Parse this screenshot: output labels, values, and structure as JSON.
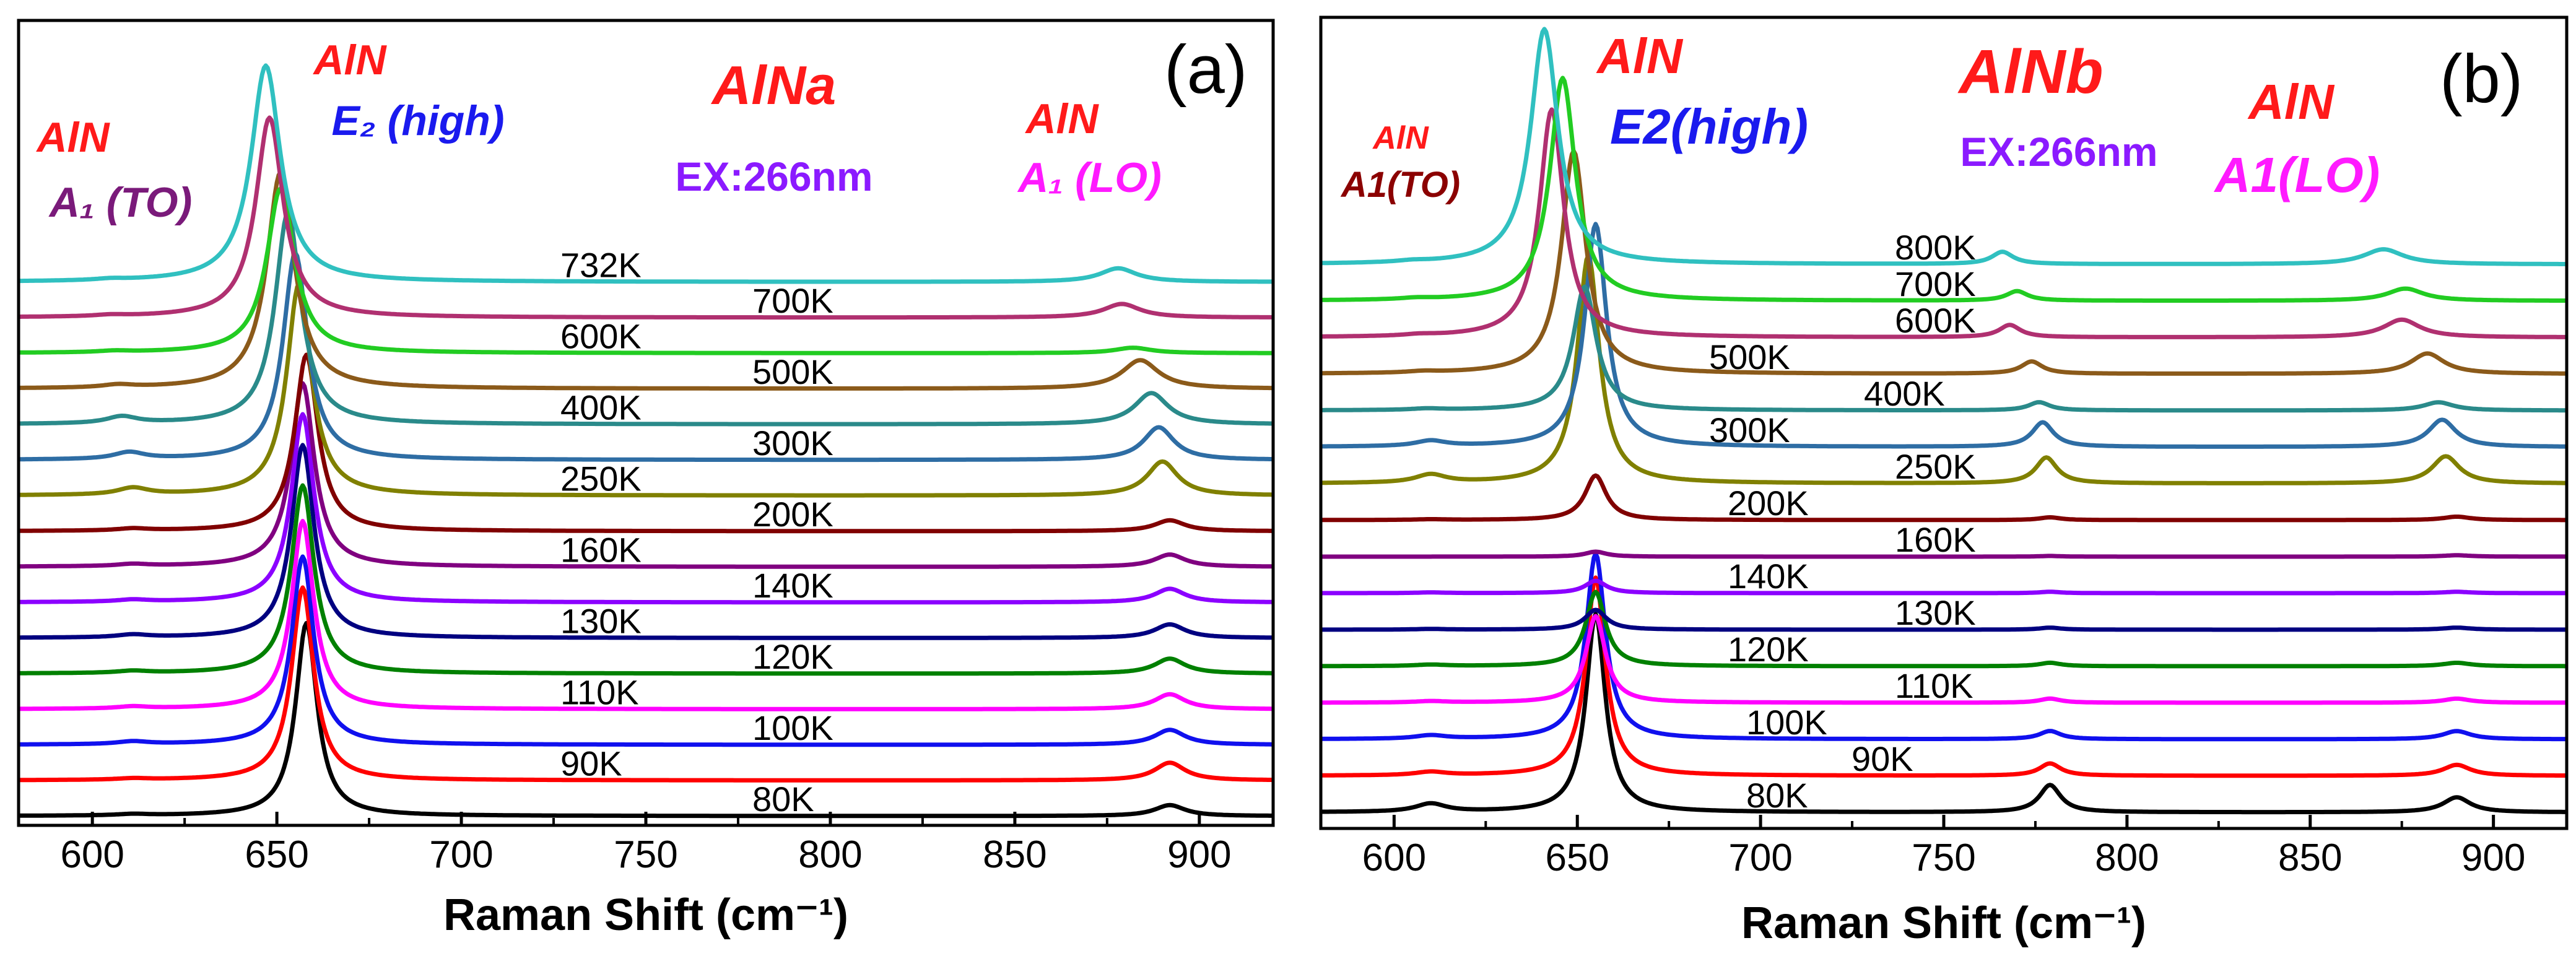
{
  "chart_data": [
    {
      "type": "line",
      "panel_label": "(a)",
      "sample_title": "AlNa",
      "excitation": "EX:266nm",
      "xlabel": "Raman Shift (cm⁻¹)",
      "xlim": [
        580,
        920
      ],
      "xticks": [
        600,
        650,
        700,
        750,
        800,
        850,
        900
      ],
      "grid": false,
      "mode_annotations": [
        {
          "top": "AlN",
          "bottom": "A₁ (TO)",
          "top_color": "#ff1a1a",
          "bottom_color": "#7a1a7a",
          "x": 610
        },
        {
          "top": "AlN",
          "bottom": "E₂ (high)",
          "top_color": "#ff1a1a",
          "bottom_color": "#1a1aee",
          "x": 655
        },
        {
          "top": "AlN",
          "bottom": "A₁ (LO)",
          "top_color": "#ff1a1a",
          "bottom_color": "#ff1aff",
          "x": 890
        }
      ],
      "series": [
        {
          "name": "80K",
          "color": "#000000",
          "e2_pos": 658,
          "e2_amp": 0.82,
          "e2_w": 3.5,
          "to_pos": 611,
          "to_amp": 0.02,
          "lo_pos": 892,
          "lo_amp": 0.16,
          "lo_w": 5
        },
        {
          "name": "90K",
          "color": "#ff0000",
          "e2_pos": 657,
          "e2_amp": 0.82,
          "e2_w": 3.6,
          "to_pos": 611,
          "to_amp": 0.02,
          "lo_pos": 892,
          "lo_amp": 0.26,
          "lo_w": 5
        },
        {
          "name": "100K",
          "color": "#1010ee",
          "e2_pos": 657,
          "e2_amp": 0.8,
          "e2_w": 3.6,
          "to_pos": 611,
          "to_amp": 0.04,
          "lo_pos": 892,
          "lo_amp": 0.22,
          "lo_w": 5
        },
        {
          "name": "110K",
          "color": "#ff00ff",
          "e2_pos": 657,
          "e2_amp": 0.8,
          "e2_w": 3.6,
          "to_pos": 611,
          "to_amp": 0.03,
          "lo_pos": 892,
          "lo_amp": 0.22,
          "lo_w": 5
        },
        {
          "name": "120K",
          "color": "#008000",
          "e2_pos": 657,
          "e2_amp": 0.8,
          "e2_w": 3.7,
          "to_pos": 611,
          "to_amp": 0.03,
          "lo_pos": 892,
          "lo_amp": 0.22,
          "lo_w": 5
        },
        {
          "name": "130K",
          "color": "#000080",
          "e2_pos": 657,
          "e2_amp": 0.82,
          "e2_w": 3.7,
          "to_pos": 611,
          "to_amp": 0.04,
          "lo_pos": 892,
          "lo_amp": 0.2,
          "lo_w": 5
        },
        {
          "name": "140K",
          "color": "#8b00ff",
          "e2_pos": 657,
          "e2_amp": 0.8,
          "e2_w": 3.7,
          "to_pos": 611,
          "to_amp": 0.03,
          "lo_pos": 892,
          "lo_amp": 0.2,
          "lo_w": 5
        },
        {
          "name": "160K",
          "color": "#800080",
          "e2_pos": 657,
          "e2_amp": 0.78,
          "e2_w": 3.8,
          "to_pos": 611,
          "to_amp": 0.03,
          "lo_pos": 892,
          "lo_amp": 0.18,
          "lo_w": 5
        },
        {
          "name": "200K",
          "color": "#800000",
          "e2_pos": 658,
          "e2_amp": 0.75,
          "e2_w": 3.8,
          "to_pos": 611,
          "to_amp": 0.03,
          "lo_pos": 892,
          "lo_amp": 0.16,
          "lo_w": 5
        },
        {
          "name": "250K",
          "color": "#808000",
          "e2_pos": 656,
          "e2_amp": 0.9,
          "e2_w": 4.0,
          "to_pos": 611,
          "to_amp": 0.1,
          "lo_pos": 890,
          "lo_amp": 0.5,
          "lo_w": 5
        },
        {
          "name": "300K",
          "color": "#2e6da4",
          "e2_pos": 655,
          "e2_amp": 0.88,
          "e2_w": 4.0,
          "to_pos": 610,
          "to_amp": 0.1,
          "lo_pos": 889,
          "lo_amp": 0.48,
          "lo_w": 5
        },
        {
          "name": "400K",
          "color": "#2a8a8a",
          "e2_pos": 653,
          "e2_amp": 0.9,
          "e2_w": 4.2,
          "to_pos": 608,
          "to_amp": 0.1,
          "lo_pos": 887,
          "lo_amp": 0.46,
          "lo_w": 5.5
        },
        {
          "name": "500K",
          "color": "#8b5a1a",
          "e2_pos": 651,
          "e2_amp": 0.92,
          "e2_w": 4.5,
          "to_pos": 607,
          "to_amp": 0.04,
          "lo_pos": 884,
          "lo_amp": 0.42,
          "lo_w": 6
        },
        {
          "name": "600K",
          "color": "#22cc22",
          "e2_pos": 651,
          "e2_amp": 0.7,
          "e2_w": 4.5,
          "to_pos": 606,
          "to_amp": 0.02,
          "lo_pos": 882,
          "lo_amp": 0.08,
          "lo_w": 6
        },
        {
          "name": "700K",
          "color": "#b03070",
          "e2_pos": 648,
          "e2_amp": 0.85,
          "e2_w": 4.5,
          "to_pos": 605,
          "to_amp": 0.02,
          "lo_pos": 879,
          "lo_amp": 0.2,
          "lo_w": 6
        },
        {
          "name": "732K",
          "color": "#30c0c0",
          "e2_pos": 647,
          "e2_amp": 0.92,
          "e2_w": 4.8,
          "to_pos": 605,
          "to_amp": 0.02,
          "lo_pos": 878,
          "lo_amp": 0.2,
          "lo_w": 6
        }
      ]
    },
    {
      "type": "line",
      "panel_label": "(b)",
      "sample_title": "AlNb",
      "excitation": "EX:266nm",
      "xlabel": "Raman Shift (cm⁻¹)",
      "xlim": [
        580,
        920
      ],
      "xticks": [
        600,
        650,
        700,
        750,
        800,
        850,
        900
      ],
      "grid": false,
      "mode_annotations": [
        {
          "top": "AlN",
          "bottom": "A1(TO)",
          "top_color": "#ff1a1a",
          "bottom_color": "#8b0000",
          "x": 610
        },
        {
          "top": "AlN",
          "bottom": "E2(high)",
          "top_color": "#ff1a1a",
          "bottom_color": "#1a1aee",
          "x": 655
        },
        {
          "top": "AlN",
          "bottom": "A1(LO)",
          "top_color": "#ff1a1a",
          "bottom_color": "#ff1aff",
          "x": 890
        }
      ],
      "series": [
        {
          "name": "80K",
          "color": "#000000",
          "e2_pos": 655,
          "e2_amp": 0.8,
          "e2_w": 3.2,
          "to_pos": 610,
          "to_amp": 0.12,
          "lo_pos": 890,
          "lo_amp": 0.22,
          "lo_w": 4.5,
          "x2_pos": 779,
          "x2_amp": 0.4
        },
        {
          "name": "90K",
          "color": "#ff0000",
          "e2_pos": 655,
          "e2_amp": 0.8,
          "e2_w": 3.2,
          "to_pos": 610,
          "to_amp": 0.05,
          "lo_pos": 890,
          "lo_amp": 0.16,
          "lo_w": 4.5,
          "x2_pos": 779,
          "x2_amp": 0.18
        },
        {
          "name": "100K",
          "color": "#1010ee",
          "e2_pos": 655,
          "e2_amp": 0.75,
          "e2_w": 3.2,
          "to_pos": 610,
          "to_amp": 0.05,
          "lo_pos": 890,
          "lo_amp": 0.12,
          "lo_w": 4.5,
          "x2_pos": 779,
          "x2_amp": 0.12
        },
        {
          "name": "110K",
          "color": "#ff00ff",
          "e2_pos": 655,
          "e2_amp": 0.35,
          "e2_w": 3.2,
          "to_pos": 610,
          "to_amp": 0.02,
          "lo_pos": 890,
          "lo_amp": 0.06,
          "lo_w": 4.5,
          "x2_pos": 779,
          "x2_amp": 0.06
        },
        {
          "name": "120K",
          "color": "#008000",
          "e2_pos": 655,
          "e2_amp": 0.3,
          "e2_w": 3.2,
          "to_pos": 610,
          "to_amp": 0.02,
          "lo_pos": 890,
          "lo_amp": 0.05,
          "lo_w": 4.5,
          "x2_pos": 779,
          "x2_amp": 0.05
        },
        {
          "name": "130K",
          "color": "#000080",
          "e2_pos": 655,
          "e2_amp": 0.08,
          "e2_w": 3.5,
          "to_pos": 610,
          "to_amp": 0.01,
          "lo_pos": 890,
          "lo_amp": 0.03,
          "lo_w": 4.5,
          "x2_pos": 779,
          "x2_amp": 0.03
        },
        {
          "name": "140K",
          "color": "#8b00ff",
          "e2_pos": 655,
          "e2_amp": 0.05,
          "e2_w": 3.5,
          "to_pos": 610,
          "to_amp": 0.01,
          "lo_pos": 890,
          "lo_amp": 0.02,
          "lo_w": 4.5,
          "x2_pos": 779,
          "x2_amp": 0.02
        },
        {
          "name": "160K",
          "color": "#800080",
          "e2_pos": 655,
          "e2_amp": 0.02,
          "e2_w": 3.5,
          "to_pos": 610,
          "to_amp": 0.0,
          "lo_pos": 890,
          "lo_amp": 0.02,
          "lo_w": 4.5,
          "x2_pos": 779,
          "x2_amp": 0.01
        },
        {
          "name": "200K",
          "color": "#800000",
          "e2_pos": 655,
          "e2_amp": 0.18,
          "e2_w": 3.5,
          "to_pos": 610,
          "to_amp": 0.01,
          "lo_pos": 890,
          "lo_amp": 0.05,
          "lo_w": 4.5,
          "x2_pos": 779,
          "x2_amp": 0.04
        },
        {
          "name": "250K",
          "color": "#808000",
          "e2_pos": 653,
          "e2_amp": 0.92,
          "e2_w": 3.6,
          "to_pos": 610,
          "to_amp": 0.12,
          "lo_pos": 887,
          "lo_amp": 0.4,
          "lo_w": 4.5,
          "x2_pos": 778,
          "x2_amp": 0.38
        },
        {
          "name": "300K",
          "color": "#2e6da4",
          "e2_pos": 655,
          "e2_amp": 0.9,
          "e2_w": 3.6,
          "to_pos": 610,
          "to_amp": 0.08,
          "lo_pos": 886,
          "lo_amp": 0.4,
          "lo_w": 4.5,
          "x2_pos": 777,
          "x2_amp": 0.36
        },
        {
          "name": "400K",
          "color": "#2a8a8a",
          "e2_pos": 652,
          "e2_amp": 0.5,
          "e2_w": 3.8,
          "to_pos": 609,
          "to_amp": 0.02,
          "lo_pos": 885,
          "lo_amp": 0.12,
          "lo_w": 5,
          "x2_pos": 776,
          "x2_amp": 0.12
        },
        {
          "name": "500K",
          "color": "#8b5a1a",
          "e2_pos": 649,
          "e2_amp": 0.9,
          "e2_w": 4.0,
          "to_pos": 608,
          "to_amp": 0.02,
          "lo_pos": 882,
          "lo_amp": 0.3,
          "lo_w": 5.5,
          "x2_pos": 774,
          "x2_amp": 0.18
        },
        {
          "name": "600K",
          "color": "#b03070",
          "e2_pos": 643,
          "e2_amp": 0.92,
          "e2_w": 4.0,
          "to_pos": 607,
          "to_amp": 0.02,
          "lo_pos": 875,
          "lo_amp": 0.26,
          "lo_w": 6,
          "x2_pos": 768,
          "x2_amp": 0.18
        },
        {
          "name": "700K",
          "color": "#22cc22",
          "e2_pos": 646,
          "e2_amp": 0.9,
          "e2_w": 4.2,
          "to_pos": 606,
          "to_amp": 0.02,
          "lo_pos": 876,
          "lo_amp": 0.18,
          "lo_w": 6,
          "x2_pos": 770,
          "x2_amp": 0.14
        },
        {
          "name": "800K",
          "color": "#30c0c0",
          "e2_pos": 641,
          "e2_amp": 0.95,
          "e2_w": 4.5,
          "to_pos": 605,
          "to_amp": 0.02,
          "lo_pos": 870,
          "lo_amp": 0.22,
          "lo_w": 6.5,
          "x2_pos": 766,
          "x2_amp": 0.18
        }
      ]
    }
  ]
}
